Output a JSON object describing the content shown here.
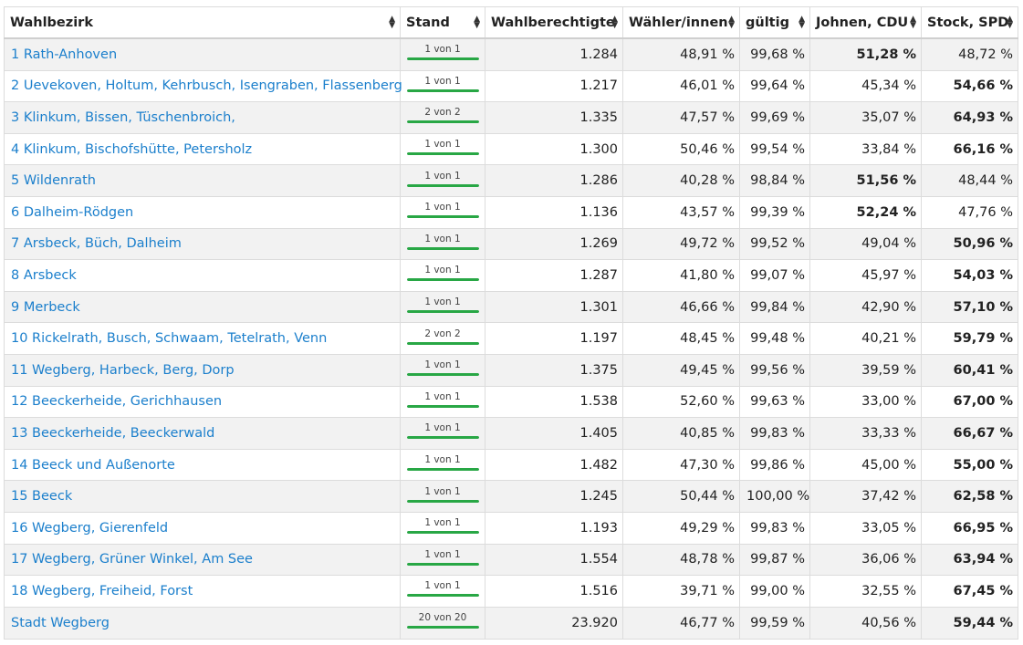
{
  "colors": {
    "link": "#1b7fcc",
    "progress": "#28a745",
    "stripe": "#f2f2f2"
  },
  "headers": [
    "Wahlbezirk",
    "Stand",
    "Wahlberechtigte",
    "Wähler/innen",
    "gültig",
    "Johnen, CDU",
    "Stock, SPD"
  ],
  "sort_icon": "sort-up-down-icon",
  "rows": [
    {
      "name": "1 Rath-Anhoven",
      "stand": "1 von 1",
      "progress": 1,
      "wahlberechtigte": "1.284",
      "waehler": "48,91 %",
      "gueltig": "99,68 %",
      "cdu": "51,28 %",
      "spd": "48,72 %",
      "winner": "cdu"
    },
    {
      "name": "2 Uevekoven, Holtum, Kehrbusch, Isengraben, Flassenberg",
      "stand": "1 von 1",
      "progress": 1,
      "wahlberechtigte": "1.217",
      "waehler": "46,01 %",
      "gueltig": "99,64 %",
      "cdu": "45,34 %",
      "spd": "54,66 %",
      "winner": "spd"
    },
    {
      "name": "3 Klinkum, Bissen, Tüschenbroich,",
      "stand": "2 von 2",
      "progress": 1,
      "wahlberechtigte": "1.335",
      "waehler": "47,57 %",
      "gueltig": "99,69 %",
      "cdu": "35,07 %",
      "spd": "64,93 %",
      "winner": "spd"
    },
    {
      "name": "4 Klinkum, Bischofshütte, Petersholz",
      "stand": "1 von 1",
      "progress": 1,
      "wahlberechtigte": "1.300",
      "waehler": "50,46 %",
      "gueltig": "99,54 %",
      "cdu": "33,84 %",
      "spd": "66,16 %",
      "winner": "spd"
    },
    {
      "name": "5 Wildenrath",
      "stand": "1 von 1",
      "progress": 1,
      "wahlberechtigte": "1.286",
      "waehler": "40,28 %",
      "gueltig": "98,84 %",
      "cdu": "51,56 %",
      "spd": "48,44 %",
      "winner": "cdu"
    },
    {
      "name": "6 Dalheim-Rödgen",
      "stand": "1 von 1",
      "progress": 1,
      "wahlberechtigte": "1.136",
      "waehler": "43,57 %",
      "gueltig": "99,39 %",
      "cdu": "52,24 %",
      "spd": "47,76 %",
      "winner": "cdu"
    },
    {
      "name": "7 Arsbeck, Büch, Dalheim",
      "stand": "1 von 1",
      "progress": 1,
      "wahlberechtigte": "1.269",
      "waehler": "49,72 %",
      "gueltig": "99,52 %",
      "cdu": "49,04 %",
      "spd": "50,96 %",
      "winner": "spd"
    },
    {
      "name": "8 Arsbeck",
      "stand": "1 von 1",
      "progress": 1,
      "wahlberechtigte": "1.287",
      "waehler": "41,80 %",
      "gueltig": "99,07 %",
      "cdu": "45,97 %",
      "spd": "54,03 %",
      "winner": "spd"
    },
    {
      "name": "9 Merbeck",
      "stand": "1 von 1",
      "progress": 1,
      "wahlberechtigte": "1.301",
      "waehler": "46,66 %",
      "gueltig": "99,84 %",
      "cdu": "42,90 %",
      "spd": "57,10 %",
      "winner": "spd"
    },
    {
      "name": "10 Rickelrath, Busch, Schwaam, Tetelrath, Venn",
      "stand": "2 von 2",
      "progress": 1,
      "wahlberechtigte": "1.197",
      "waehler": "48,45 %",
      "gueltig": "99,48 %",
      "cdu": "40,21 %",
      "spd": "59,79 %",
      "winner": "spd"
    },
    {
      "name": "11 Wegberg, Harbeck, Berg, Dorp",
      "stand": "1 von 1",
      "progress": 1,
      "wahlberechtigte": "1.375",
      "waehler": "49,45 %",
      "gueltig": "99,56 %",
      "cdu": "39,59 %",
      "spd": "60,41 %",
      "winner": "spd"
    },
    {
      "name": "12 Beeckerheide, Gerichhausen",
      "stand": "1 von 1",
      "progress": 1,
      "wahlberechtigte": "1.538",
      "waehler": "52,60 %",
      "gueltig": "99,63 %",
      "cdu": "33,00 %",
      "spd": "67,00 %",
      "winner": "spd"
    },
    {
      "name": "13 Beeckerheide, Beeckerwald",
      "stand": "1 von 1",
      "progress": 1,
      "wahlberechtigte": "1.405",
      "waehler": "40,85 %",
      "gueltig": "99,83 %",
      "cdu": "33,33 %",
      "spd": "66,67 %",
      "winner": "spd"
    },
    {
      "name": "14 Beeck und Außenorte",
      "stand": "1 von 1",
      "progress": 1,
      "wahlberechtigte": "1.482",
      "waehler": "47,30 %",
      "gueltig": "99,86 %",
      "cdu": "45,00 %",
      "spd": "55,00 %",
      "winner": "spd"
    },
    {
      "name": "15 Beeck",
      "stand": "1 von 1",
      "progress": 1,
      "wahlberechtigte": "1.245",
      "waehler": "50,44 %",
      "gueltig": "100,00 %",
      "cdu": "37,42 %",
      "spd": "62,58 %",
      "winner": "spd"
    },
    {
      "name": "16 Wegberg, Gierenfeld",
      "stand": "1 von 1",
      "progress": 1,
      "wahlberechtigte": "1.193",
      "waehler": "49,29 %",
      "gueltig": "99,83 %",
      "cdu": "33,05 %",
      "spd": "66,95 %",
      "winner": "spd"
    },
    {
      "name": "17 Wegberg, Grüner Winkel, Am See",
      "stand": "1 von 1",
      "progress": 1,
      "wahlberechtigte": "1.554",
      "waehler": "48,78 %",
      "gueltig": "99,87 %",
      "cdu": "36,06 %",
      "spd": "63,94 %",
      "winner": "spd"
    },
    {
      "name": "18 Wegberg, Freiheid, Forst",
      "stand": "1 von 1",
      "progress": 1,
      "wahlberechtigte": "1.516",
      "waehler": "39,71 %",
      "gueltig": "99,00 %",
      "cdu": "32,55 %",
      "spd": "67,45 %",
      "winner": "spd"
    }
  ],
  "total": {
    "name": "Stadt Wegberg",
    "stand": "20 von 20",
    "progress": 1,
    "wahlberechtigte": "23.920",
    "waehler": "46,77 %",
    "gueltig": "99,59 %",
    "cdu": "40,56 %",
    "spd": "59,44 %",
    "winner": "spd"
  }
}
